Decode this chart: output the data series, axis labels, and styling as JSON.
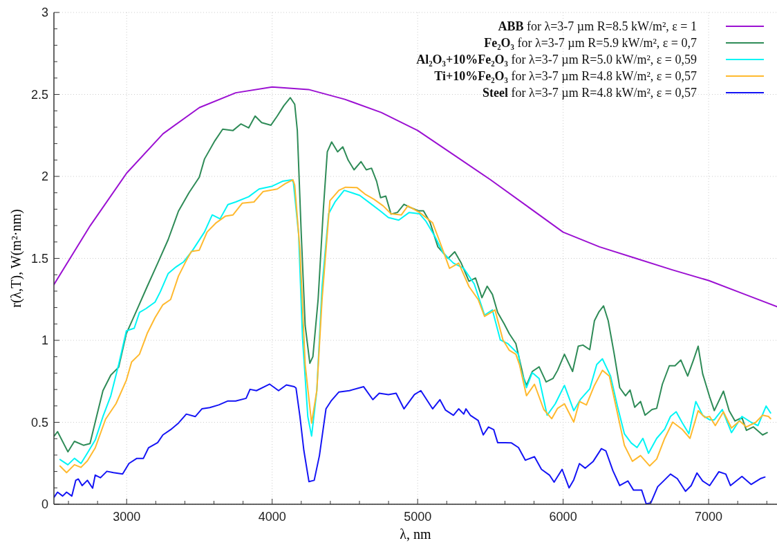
{
  "chart_data": {
    "type": "line",
    "xlabel": "λ, nm",
    "ylabel": "r(λ,T), W(m²·nm)",
    "xlim": [
      2500,
      7470
    ],
    "ylim": [
      0,
      3
    ],
    "xticks": [
      {
        "value": 2600,
        "label": null
      },
      {
        "value": 2800,
        "label": null
      },
      3000,
      {
        "value": 3200,
        "label": null
      },
      {
        "value": 3400,
        "label": null
      },
      {
        "value": 3600,
        "label": null
      },
      {
        "value": 3800,
        "label": null
      },
      4000,
      {
        "value": 4200,
        "label": null
      },
      {
        "value": 4400,
        "label": null
      },
      {
        "value": 4600,
        "label": null
      },
      {
        "value": 4800,
        "label": null
      },
      5000,
      {
        "value": 5200,
        "label": null
      },
      {
        "value": 5400,
        "label": null
      },
      {
        "value": 5600,
        "label": null
      },
      {
        "value": 5800,
        "label": null
      },
      6000,
      {
        "value": 6200,
        "label": null
      },
      {
        "value": 6400,
        "label": null
      },
      {
        "value": 6600,
        "label": null
      },
      {
        "value": 6800,
        "label": null
      },
      7000,
      {
        "value": 7200,
        "label": null
      },
      {
        "value": 7400,
        "label": null
      }
    ],
    "yticks": [
      0,
      {
        "value": 0.1,
        "label": null
      },
      {
        "value": 0.2,
        "label": null
      },
      {
        "value": 0.3,
        "label": null
      },
      {
        "value": 0.4,
        "label": null
      },
      0.5,
      {
        "value": 0.6,
        "label": null
      },
      {
        "value": 0.7,
        "label": null
      },
      {
        "value": 0.8,
        "label": null
      },
      {
        "value": 0.9,
        "label": null
      },
      1,
      {
        "value": 1.1,
        "label": null
      },
      {
        "value": 1.2,
        "label": null
      },
      {
        "value": 1.3,
        "label": null
      },
      {
        "value": 1.4,
        "label": null
      },
      1.5,
      {
        "value": 1.6,
        "label": null
      },
      {
        "value": 1.7,
        "label": null
      },
      {
        "value": 1.8,
        "label": null
      },
      {
        "value": 1.9,
        "label": null
      },
      2,
      {
        "value": 2.1,
        "label": null
      },
      {
        "value": 2.2,
        "label": null
      },
      {
        "value": 2.3,
        "label": null
      },
      {
        "value": 2.4,
        "label": null
      },
      2.5,
      {
        "value": 2.6,
        "label": null
      },
      {
        "value": 2.7,
        "label": null
      },
      {
        "value": 2.8,
        "label": null
      },
      {
        "value": 2.9,
        "label": null
      },
      3
    ],
    "grid": true,
    "legend": "top right",
    "series": [
      {
        "name": "ABB for λ=3-7 µm R=8.5 kW/m², ε = 1",
        "color": "#9b10d2",
        "x": [
          2500,
          2750,
          3000,
          3250,
          3500,
          3750,
          4000,
          4250,
          4500,
          4750,
          5000,
          5250,
          5500,
          5750,
          6000,
          6250,
          6500,
          6750,
          7000,
          7250,
          7470
        ],
        "values": [
          1.34,
          1.7,
          2.02,
          2.26,
          2.42,
          2.51,
          2.545,
          2.53,
          2.47,
          2.39,
          2.28,
          2.13,
          1.98,
          1.82,
          1.66,
          1.57,
          1.5,
          1.43,
          1.365,
          1.28,
          1.205
        ]
      },
      {
        "name": "Fe₂O₃ for λ=3-7 µm R=5.9 kW/m², ε = 0,7",
        "color": "#2e8b57",
        "x": [
          2501,
          2525,
          2596,
          2641,
          2703,
          2748,
          2793,
          2837,
          2891,
          2945,
          2998,
          3070,
          3141,
          3213,
          3285,
          3356,
          3428,
          3499,
          3535,
          3606,
          3660,
          3731,
          3785,
          3839,
          3883,
          3928,
          3991,
          4035,
          4080,
          4125,
          4155,
          4173,
          4200,
          4227,
          4259,
          4280,
          4316,
          4352,
          4379,
          4409,
          4450,
          4486,
          4522,
          4563,
          4611,
          4647,
          4683,
          4718,
          4745,
          4781,
          4817,
          4861,
          4906,
          4951,
          5004,
          5040,
          5085,
          5139,
          5210,
          5255,
          5300,
          5353,
          5398,
          5442,
          5478,
          5514,
          5550,
          5595,
          5630,
          5675,
          5729,
          5748,
          5788,
          5835,
          5883,
          5930,
          5962,
          6009,
          6065,
          6104,
          6136,
          6183,
          6215,
          6247,
          6278,
          6310,
          6350,
          6389,
          6429,
          6460,
          6492,
          6532,
          6563,
          6611,
          6643,
          6682,
          6730,
          6769,
          6809,
          6856,
          6896,
          6928,
          6959,
          7007,
          7039,
          7102,
          7141,
          7181,
          7229,
          7260,
          7308,
          7371,
          7403
        ],
        "values": [
          0.415,
          0.443,
          0.32,
          0.384,
          0.36,
          0.37,
          0.535,
          0.693,
          0.788,
          0.836,
          1.042,
          1.185,
          1.328,
          1.47,
          1.614,
          1.788,
          1.9,
          1.995,
          2.106,
          2.217,
          2.288,
          2.28,
          2.32,
          2.296,
          2.368,
          2.328,
          2.312,
          2.368,
          2.431,
          2.48,
          2.44,
          2.28,
          1.65,
          1.09,
          0.86,
          0.9,
          1.25,
          1.8,
          2.15,
          2.21,
          2.15,
          2.18,
          2.1,
          2.04,
          2.09,
          2.04,
          2.05,
          1.97,
          1.87,
          1.88,
          1.77,
          1.78,
          1.83,
          1.81,
          1.79,
          1.79,
          1.72,
          1.57,
          1.5,
          1.54,
          1.47,
          1.36,
          1.38,
          1.26,
          1.33,
          1.28,
          1.17,
          1.1,
          1.04,
          0.98,
          0.77,
          0.725,
          0.81,
          0.838,
          0.746,
          0.767,
          0.817,
          0.915,
          0.81,
          0.964,
          0.971,
          0.943,
          1.119,
          1.175,
          1.21,
          1.119,
          0.922,
          0.711,
          0.662,
          0.697,
          0.592,
          0.627,
          0.543,
          0.578,
          0.585,
          0.732,
          0.845,
          0.845,
          0.88,
          0.782,
          0.88,
          0.964,
          0.796,
          0.655,
          0.571,
          0.69,
          0.571,
          0.508,
          0.529,
          0.451,
          0.472,
          0.423,
          0.437
        ]
      },
      {
        "name": "Al₂O₃+10%Fe₂O₃ for λ=3-7 µm R=5.0 kW/m², ε = 0,59",
        "color": "#00f5f5",
        "x": [
          2542,
          2596,
          2641,
          2686,
          2730,
          2784,
          2837,
          2891,
          2945,
          2998,
          3052,
          3088,
          3132,
          3195,
          3231,
          3285,
          3338,
          3392,
          3454,
          3535,
          3588,
          3642,
          3696,
          3749,
          3839,
          3910,
          4000,
          4071,
          4134,
          4146,
          4182,
          4209,
          4245,
          4271,
          4307,
          4343,
          4388,
          4432,
          4495,
          4549,
          4602,
          4674,
          4745,
          4799,
          4870,
          4942,
          5013,
          5058,
          5121,
          5174,
          5246,
          5317,
          5389,
          5460,
          5514,
          5568,
          5621,
          5693,
          5708,
          5748,
          5788,
          5835,
          5890,
          5946,
          6009,
          6073,
          6120,
          6183,
          6231,
          6270,
          6326,
          6373,
          6421,
          6468,
          6508,
          6548,
          6587,
          6643,
          6698,
          6738,
          6777,
          6817,
          6864,
          6912,
          6959,
          7007,
          7039,
          7094,
          7157,
          7229,
          7292,
          7339,
          7395,
          7426
        ],
        "values": [
          0.273,
          0.241,
          0.28,
          0.249,
          0.312,
          0.392,
          0.535,
          0.662,
          0.852,
          1.058,
          1.074,
          1.17,
          1.193,
          1.233,
          1.296,
          1.407,
          1.447,
          1.479,
          1.55,
          1.661,
          1.765,
          1.741,
          1.828,
          1.844,
          1.876,
          1.923,
          1.94,
          1.97,
          1.979,
          1.963,
          1.646,
          1.01,
          0.535,
          0.416,
          0.693,
          1.328,
          1.772,
          1.844,
          1.915,
          1.9,
          1.884,
          1.836,
          1.788,
          1.749,
          1.733,
          1.78,
          1.772,
          1.725,
          1.63,
          1.534,
          1.471,
          1.439,
          1.344,
          1.154,
          1.185,
          1.003,
          0.979,
          0.915,
          0.824,
          0.711,
          0.803,
          0.767,
          0.543,
          0.613,
          0.725,
          0.571,
          0.641,
          0.704,
          0.852,
          0.887,
          0.782,
          0.599,
          0.43,
          0.374,
          0.346,
          0.402,
          0.311,
          0.402,
          0.458,
          0.536,
          0.564,
          0.5,
          0.43,
          0.627,
          0.543,
          0.515,
          0.515,
          0.578,
          0.437,
          0.536,
          0.5,
          0.48,
          0.599,
          0.557
        ]
      },
      {
        "name": "Ti+10%Fe₂O₃ for λ=3-7 µm R=4.8 kW/m², ε = 0,57",
        "color": "#ffb92e",
        "x": [
          2542,
          2587,
          2641,
          2686,
          2730,
          2784,
          2855,
          2927,
          2998,
          3034,
          3088,
          3141,
          3195,
          3249,
          3302,
          3356,
          3410,
          3445,
          3499,
          3553,
          3615,
          3678,
          3731,
          3794,
          3875,
          3937,
          4035,
          4089,
          4143,
          4155,
          4191,
          4227,
          4271,
          4307,
          4343,
          4397,
          4459,
          4504,
          4584,
          4638,
          4700,
          4763,
          4817,
          4888,
          4933,
          5013,
          5103,
          5147,
          5219,
          5282,
          5353,
          5416,
          5460,
          5532,
          5586,
          5630,
          5675,
          5700,
          5748,
          5803,
          5867,
          5922,
          5962,
          6009,
          6073,
          6112,
          6160,
          6215,
          6270,
          6318,
          6373,
          6421,
          6476,
          6532,
          6595,
          6643,
          6698,
          6753,
          6817,
          6872,
          6928,
          6975,
          7007,
          7046,
          7102,
          7157,
          7213,
          7260,
          7324,
          7371,
          7411,
          7426
        ],
        "values": [
          0.233,
          0.193,
          0.241,
          0.225,
          0.265,
          0.344,
          0.519,
          0.614,
          0.757,
          0.868,
          0.915,
          1.042,
          1.138,
          1.217,
          1.249,
          1.392,
          1.487,
          1.542,
          1.55,
          1.661,
          1.717,
          1.757,
          1.765,
          1.836,
          1.844,
          1.907,
          1.923,
          1.955,
          1.979,
          1.947,
          1.55,
          0.852,
          0.495,
          0.693,
          1.249,
          1.852,
          1.915,
          1.934,
          1.931,
          1.892,
          1.86,
          1.82,
          1.772,
          1.765,
          1.82,
          1.78,
          1.717,
          1.614,
          1.439,
          1.471,
          1.328,
          1.249,
          1.146,
          1.185,
          1.003,
          0.939,
          0.915,
          0.852,
          0.662,
          0.732,
          0.578,
          0.522,
          0.585,
          0.613,
          0.501,
          0.627,
          0.606,
          0.725,
          0.817,
          0.782,
          0.557,
          0.36,
          0.262,
          0.297,
          0.234,
          0.276,
          0.402,
          0.501,
          0.458,
          0.402,
          0.571,
          0.529,
          0.536,
          0.48,
          0.564,
          0.465,
          0.508,
          0.472,
          0.5,
          0.543,
          0.536,
          0.522
        ]
      },
      {
        "name": "Steel for λ=3-7 µm R=4.8 kW/m², ε = 0,57",
        "color": "#1414f5",
        "x": [
          2501,
          2525,
          2560,
          2587,
          2623,
          2650,
          2668,
          2694,
          2730,
          2766,
          2784,
          2820,
          2864,
          2909,
          2972,
          3016,
          3070,
          3115,
          3150,
          3213,
          3249,
          3302,
          3356,
          3410,
          3472,
          3517,
          3571,
          3633,
          3696,
          3749,
          3821,
          3848,
          3892,
          3946,
          3982,
          4044,
          4098,
          4152,
          4164,
          4191,
          4218,
          4253,
          4289,
          4325,
          4370,
          4405,
          4459,
          4531,
          4629,
          4692,
          4736,
          4799,
          4852,
          4906,
          4978,
          5022,
          5103,
          5153,
          5192,
          5246,
          5282,
          5317,
          5332,
          5362,
          5416,
          5451,
          5487,
          5523,
          5550,
          5603,
          5645,
          5693,
          5740,
          5803,
          5851,
          5906,
          5938,
          5993,
          6041,
          6073,
          6112,
          6152,
          6207,
          6263,
          6294,
          6342,
          6389,
          6445,
          6484,
          6540,
          6571,
          6603,
          6650,
          6690,
          6738,
          6785,
          6841,
          6880,
          6920,
          6959,
          7007,
          7070,
          7118,
          7150,
          7229,
          7292,
          7355,
          7387
        ],
        "values": [
          0.043,
          0.074,
          0.05,
          0.074,
          0.05,
          0.146,
          0.154,
          0.114,
          0.146,
          0.098,
          0.178,
          0.162,
          0.201,
          0.193,
          0.185,
          0.249,
          0.28,
          0.28,
          0.344,
          0.376,
          0.423,
          0.455,
          0.495,
          0.55,
          0.535,
          0.582,
          0.59,
          0.606,
          0.63,
          0.63,
          0.646,
          0.701,
          0.693,
          0.717,
          0.733,
          0.693,
          0.728,
          0.717,
          0.709,
          0.535,
          0.328,
          0.138,
          0.146,
          0.297,
          0.582,
          0.63,
          0.685,
          0.693,
          0.717,
          0.638,
          0.677,
          0.669,
          0.677,
          0.582,
          0.669,
          0.693,
          0.582,
          0.638,
          0.574,
          0.543,
          0.582,
          0.55,
          0.582,
          0.543,
          0.511,
          0.423,
          0.471,
          0.455,
          0.376,
          0.376,
          0.374,
          0.346,
          0.269,
          0.29,
          0.213,
          0.178,
          0.135,
          0.213,
          0.1,
          0.149,
          0.248,
          0.22,
          0.262,
          0.339,
          0.325,
          0.205,
          0.114,
          0.142,
          0.086,
          0.086,
          0.002,
          0.009,
          0.107,
          0.142,
          0.184,
          0.156,
          0.079,
          0.114,
          0.191,
          0.142,
          0.114,
          0.198,
          0.184,
          0.114,
          0.17,
          0.121,
          0.156,
          0.166
        ]
      }
    ]
  }
}
